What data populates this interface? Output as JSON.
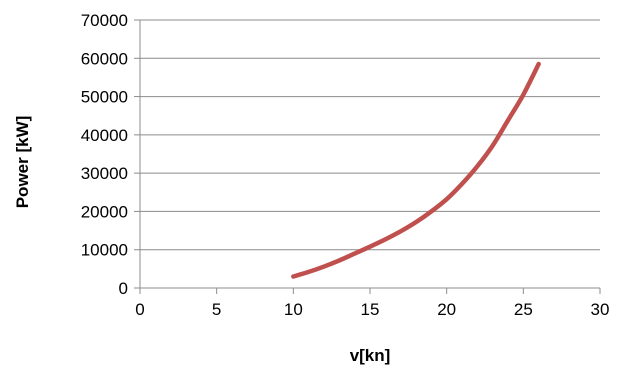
{
  "chart_data": {
    "type": "line",
    "title": "",
    "xlabel": "v[kn]",
    "ylabel": "Power [kW]",
    "xlim": [
      0,
      30
    ],
    "ylim": [
      0,
      70000
    ],
    "x_ticks": [
      0,
      5,
      10,
      15,
      20,
      25,
      30
    ],
    "y_ticks": [
      0,
      10000,
      20000,
      30000,
      40000,
      50000,
      60000,
      70000
    ],
    "x_tick_labels": [
      "0",
      "5",
      "10",
      "15",
      "20",
      "25",
      "30"
    ],
    "y_tick_labels": [
      "0",
      "10000",
      "20000",
      "30000",
      "40000",
      "50000",
      "60000",
      "70000"
    ],
    "grid": "horizontal",
    "legend": "none",
    "series": [
      {
        "color": "#c0504d",
        "x": [
          10,
          11,
          12,
          13,
          14,
          15,
          16,
          17,
          18,
          19,
          20,
          21,
          22,
          23,
          24,
          25,
          26
        ],
        "y": [
          3000,
          4200,
          5600,
          7200,
          9000,
          10800,
          12700,
          14800,
          17200,
          20000,
          23200,
          27200,
          31800,
          37200,
          43800,
          50500,
          58500
        ]
      }
    ]
  }
}
